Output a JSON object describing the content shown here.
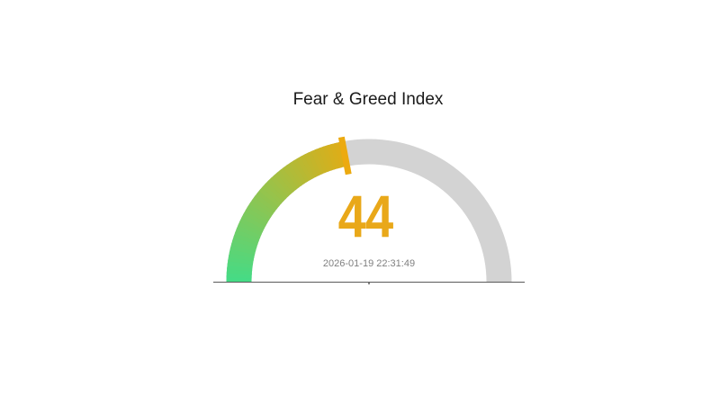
{
  "title": "Fear & Greed Index",
  "gauge": {
    "value": "44",
    "timestamp": "2026-01-19 22:31:49"
  },
  "chart_data": {
    "type": "gauge",
    "title": "Fear & Greed Index",
    "value": 44,
    "range": [
      0,
      100
    ],
    "arc_span_degrees": 180,
    "timestamp_label": "2026-01-19 22:31:49",
    "legend": "none",
    "layout_hints": {
      "needle_at_percent": 44,
      "colored_portion": "0 to value, gradient green to gold, counterclockwise from left",
      "remainder_portion": "value to 100, light gray"
    },
    "colors": {
      "track": "#d3d3d3",
      "gradient_start": "#44db86",
      "gradient_end": "#e0ad16",
      "needle": "#ecaa10",
      "value_text": "#e9a819",
      "timestamp_text": "#808080",
      "title_text": "#1a1a1a",
      "baseline": "#5a5a5a"
    }
  }
}
